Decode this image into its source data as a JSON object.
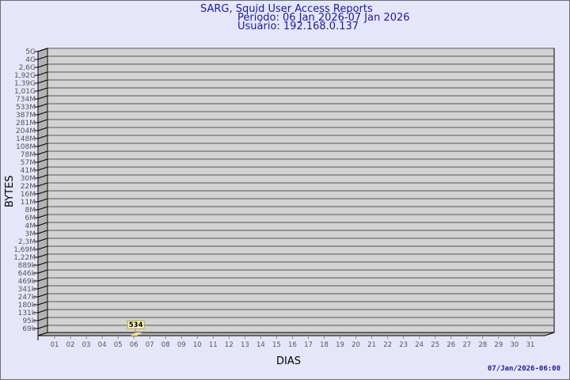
{
  "title": "SARG, Squid User Access Reports",
  "period": "Período: 06 Jan 2026-07 Jan 2026",
  "user": "Usuário: 192.168.0.137",
  "timestamp": "07/Jan/2026-06:00",
  "chart_data": {
    "type": "bar",
    "xlabel": "DIAS",
    "ylabel": "BYTES",
    "categories": [
      "01",
      "02",
      "03",
      "04",
      "05",
      "06",
      "07",
      "08",
      "09",
      "10",
      "11",
      "12",
      "13",
      "14",
      "15",
      "16",
      "17",
      "18",
      "19",
      "20",
      "21",
      "22",
      "23",
      "24",
      "25",
      "26",
      "27",
      "28",
      "29",
      "30",
      "31"
    ],
    "y_tick_labels": [
      "5G",
      "4G",
      "2,6G",
      "1,92G",
      "1,39G",
      "1,01G",
      "734M",
      "533M",
      "387M",
      "281M",
      "204M",
      "148M",
      "108M",
      "78M",
      "57M",
      "41M",
      "30M",
      "22M",
      "16M",
      "11M",
      "8M",
      "6M",
      "4M",
      "3M",
      "2,3M",
      "1,69M",
      "1,22M",
      "889k",
      "646k",
      "469k",
      "341k",
      "247k",
      "180k",
      "131k",
      "95k",
      "69k"
    ],
    "y_scale": "log",
    "grid": true,
    "series": [
      {
        "values": [
          null,
          null,
          null,
          null,
          null,
          534,
          null,
          null,
          null,
          null,
          null,
          null,
          null,
          null,
          null,
          null,
          null,
          null,
          null,
          null,
          null,
          null,
          null,
          null,
          null,
          null,
          null,
          null,
          null,
          null,
          null
        ],
        "data_labels": [
          "",
          "",
          "",
          "",
          "",
          "534",
          "",
          "",
          "",
          "",
          "",
          "",
          "",
          "",
          "",
          "",
          "",
          "",
          "",
          "",
          "",
          "",
          "",
          "",
          "",
          "",
          "",
          "",
          "",
          "",
          ""
        ]
      }
    ],
    "colors": {
      "plot_bg": "#d3d3d3",
      "grid": "#555555",
      "bar": "#ffe680",
      "label_bg": "#ffffc0",
      "label_border": "#b8a040",
      "text": "#1a1a9c"
    }
  }
}
